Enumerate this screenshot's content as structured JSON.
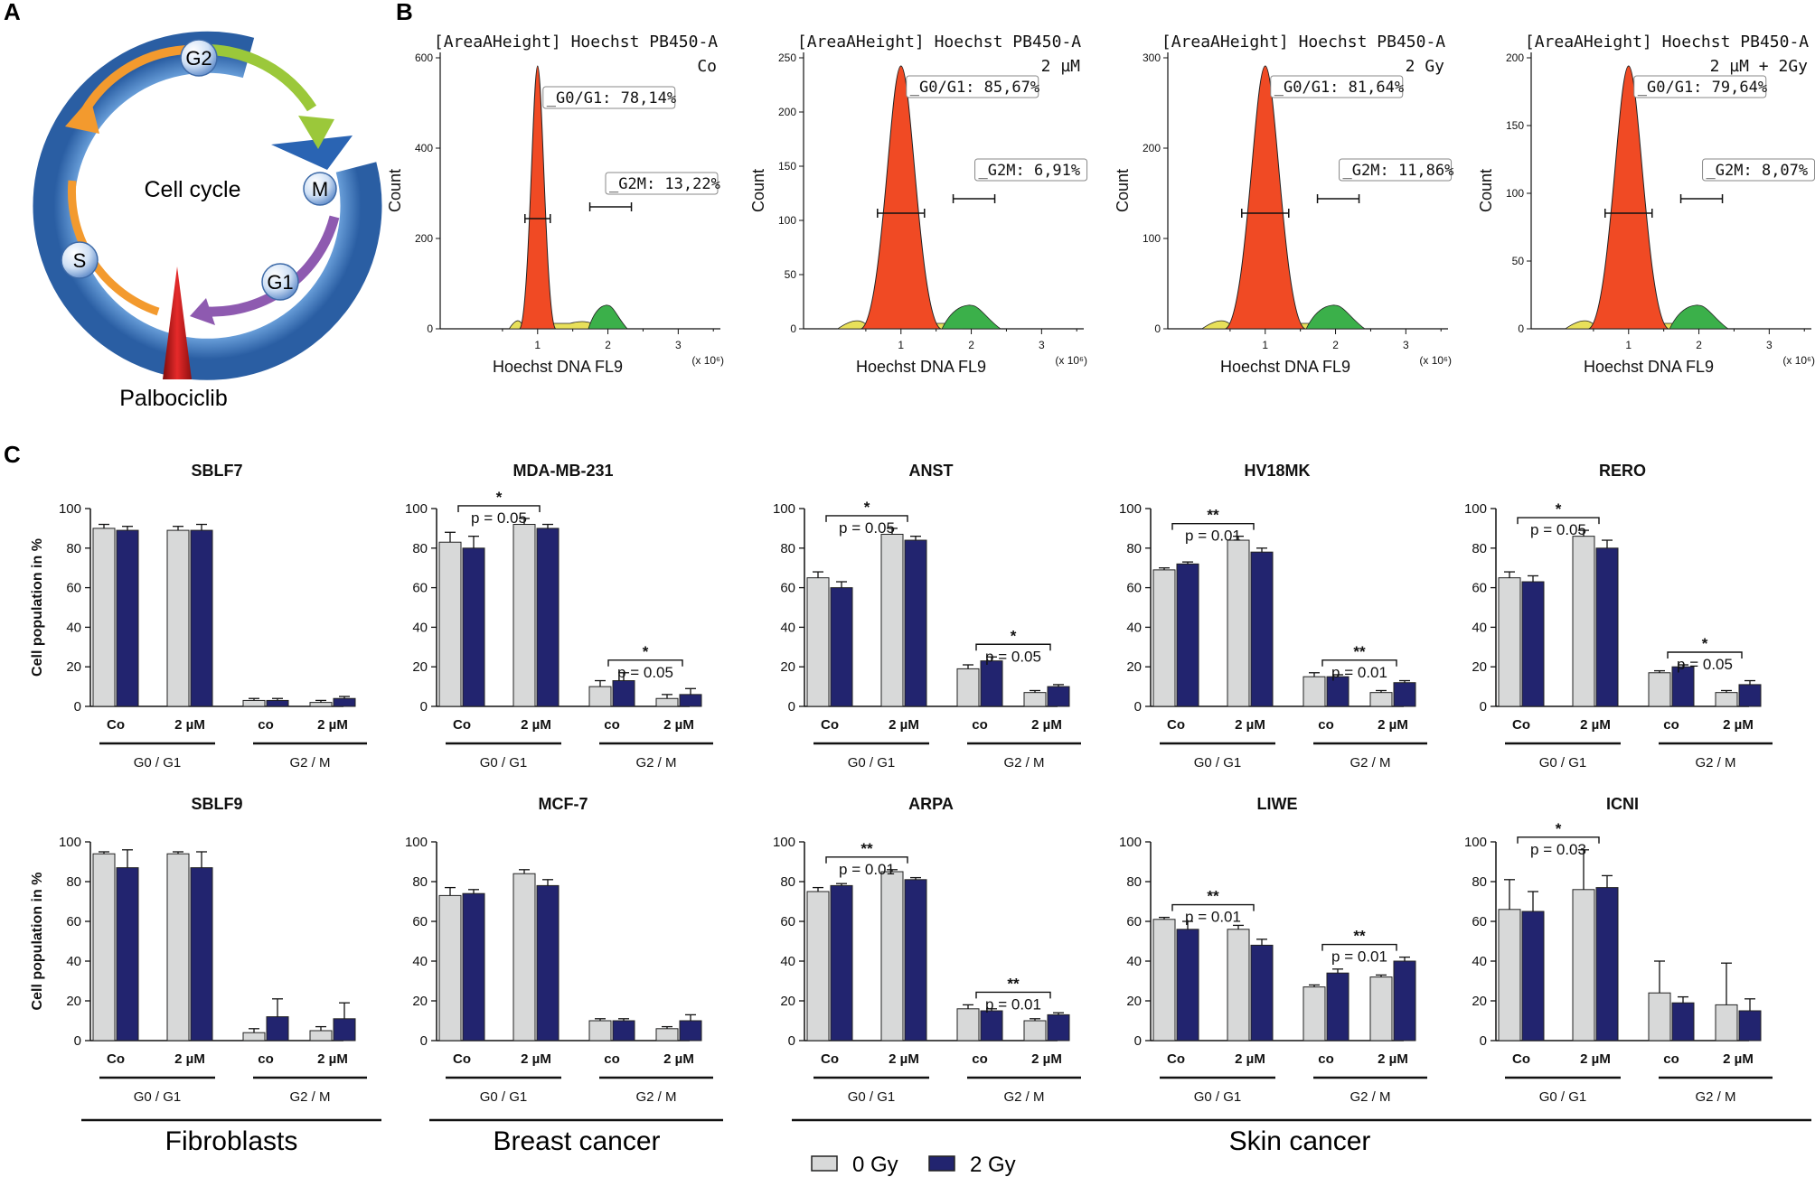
{
  "panels": {
    "a": "A",
    "b": "B",
    "c": "C"
  },
  "cycle": {
    "center": "Cell cycle",
    "phases": [
      "G2",
      "M",
      "G1",
      "S"
    ],
    "drug": "Palbociclib",
    "colors": {
      "ring": "#3d7fc8",
      "arrow_g2": "#9bc83a",
      "arrow_m": "#8e5ab0",
      "arrow_s": "#f39a2e",
      "drug": "#cc1e1e"
    }
  },
  "histograms": [
    {
      "title": "[AreaAHeight] Hoechst PB450-A",
      "condition": "Co",
      "gate1": "_G0/G1: 78,14%",
      "gate2": "_G2M: 13,22%",
      "ylabel": "Count",
      "xlabel": "Hoechst DNA FL9",
      "xunit": "(x 10⁶)",
      "yticks": [
        "0",
        "200",
        "400",
        "600"
      ],
      "xticks": [
        "1",
        "2",
        "3"
      ]
    },
    {
      "title": "[AreaAHeight] Hoechst PB450-A",
      "condition": "2 µM",
      "gate1": "_G0/G1: 85,67%",
      "gate2": "_G2M: 6,91%",
      "ylabel": "Count",
      "xlabel": "Hoechst DNA FL9",
      "xunit": "(x 10⁶)",
      "yticks": [
        "0",
        "50",
        "100",
        "150",
        "200",
        "250"
      ],
      "xticks": [
        "1",
        "2",
        "3"
      ]
    },
    {
      "title": "[AreaAHeight] Hoechst PB450-A",
      "condition": "2 Gy",
      "gate1": "_G0/G1: 81,64%",
      "gate2": "_G2M: 11,86%",
      "ylabel": "Count",
      "xlabel": "Hoechst DNA FL9",
      "xunit": "(x 10⁶)",
      "yticks": [
        "0",
        "100",
        "200",
        "300"
      ],
      "xticks": [
        "1",
        "2",
        "3"
      ]
    },
    {
      "title": "[AreaAHeight] Hoechst PB450-A",
      "condition": "2 µM +  2Gy",
      "gate1": "_G0/G1: 79,64%",
      "gate2": "_G2M: 8,07%",
      "ylabel": "Count",
      "xlabel": "Hoechst DNA FL9",
      "xunit": "(x 10⁶)",
      "yticks": [
        "0",
        "50",
        "100",
        "150",
        "200"
      ],
      "xticks": [
        "1",
        "2",
        "3"
      ]
    }
  ],
  "chart_data": [
    {
      "type": "bar",
      "title": "SBLF7",
      "ylabel": "Cell population in %",
      "ylim": [
        0,
        100
      ],
      "categories": [
        "Co",
        "2 µM",
        "co",
        "2 µM"
      ],
      "groups": [
        "G0 / G1",
        "G2  / M"
      ],
      "series": [
        {
          "name": "0 Gy",
          "values": [
            90,
            89,
            3,
            2
          ],
          "errors": [
            2,
            2,
            1,
            1
          ]
        },
        {
          "name": "2 Gy",
          "values": [
            89,
            89,
            3,
            4
          ],
          "errors": [
            2,
            3,
            1,
            1
          ]
        }
      ],
      "annotations": []
    },
    {
      "type": "bar",
      "title": "MDA-MB-231",
      "ylabel": "",
      "ylim": [
        0,
        100
      ],
      "categories": [
        "Co",
        "2 µM",
        "co",
        "2 µM"
      ],
      "groups": [
        "G0 / G1",
        "G2  / M"
      ],
      "series": [
        {
          "name": "0 Gy",
          "values": [
            83,
            92,
            10,
            4
          ],
          "errors": [
            5,
            3,
            3,
            2
          ]
        },
        {
          "name": "2 Gy",
          "values": [
            80,
            90,
            13,
            6
          ],
          "errors": [
            6,
            2,
            4,
            3
          ]
        }
      ],
      "annotations": [
        {
          "stars": "*",
          "p": "p = 0.05",
          "group": 0
        },
        {
          "stars": "*",
          "p": "p = 0.05",
          "group": 1
        }
      ]
    },
    {
      "type": "bar",
      "title": "ANST",
      "ylabel": "",
      "ylim": [
        0,
        100
      ],
      "categories": [
        "Co",
        "2 µM",
        "co",
        "2 µM"
      ],
      "groups": [
        "G0 / G1",
        "G2  / M"
      ],
      "series": [
        {
          "name": "0 Gy",
          "values": [
            65,
            87,
            19,
            7
          ],
          "errors": [
            3,
            3,
            2,
            1
          ]
        },
        {
          "name": "2 Gy",
          "values": [
            60,
            84,
            23,
            10
          ],
          "errors": [
            3,
            2,
            2,
            1
          ]
        }
      ],
      "annotations": [
        {
          "stars": "*",
          "p": "p = 0.05",
          "group": 0
        },
        {
          "stars": "*",
          "p": "p = 0.05",
          "group": 1
        }
      ]
    },
    {
      "type": "bar",
      "title": "HV18MK",
      "ylabel": "",
      "ylim": [
        0,
        100
      ],
      "categories": [
        "Co",
        "2 µM",
        "co",
        "2 µM"
      ],
      "groups": [
        "G0 / G1",
        "G2  / M"
      ],
      "series": [
        {
          "name": "0 Gy",
          "values": [
            69,
            84,
            15,
            7
          ],
          "errors": [
            1,
            2,
            2,
            1
          ]
        },
        {
          "name": "2 Gy",
          "values": [
            72,
            78,
            15,
            12
          ],
          "errors": [
            1,
            2,
            1,
            1
          ]
        }
      ],
      "annotations": [
        {
          "stars": "**",
          "p": "p = 0.01",
          "group": 0
        },
        {
          "stars": "**",
          "p": "p = 0.01",
          "group": 1
        }
      ]
    },
    {
      "type": "bar",
      "title": "RERO",
      "ylabel": "",
      "ylim": [
        0,
        100
      ],
      "categories": [
        "Co",
        "2 µM",
        "co",
        "2 µM"
      ],
      "groups": [
        "G0 / G1",
        "G2  / M"
      ],
      "series": [
        {
          "name": "0 Gy",
          "values": [
            65,
            86,
            17,
            7
          ],
          "errors": [
            3,
            3,
            1,
            1
          ]
        },
        {
          "name": "2 Gy",
          "values": [
            63,
            80,
            20,
            11
          ],
          "errors": [
            3,
            4,
            1,
            2
          ]
        }
      ],
      "annotations": [
        {
          "stars": "*",
          "p": "p = 0.05",
          "group": 0
        },
        {
          "stars": "*",
          "p": "p = 0.05",
          "group": 1
        }
      ]
    },
    {
      "type": "bar",
      "title": "SBLF9",
      "ylabel": "Cell population in %",
      "ylim": [
        0,
        100
      ],
      "categories": [
        "Co",
        "2 µM",
        "co",
        "2 µM"
      ],
      "groups": [
        "G0 / G1",
        "G2  / M"
      ],
      "series": [
        {
          "name": "0 Gy",
          "values": [
            94,
            94,
            4,
            5
          ],
          "errors": [
            1,
            1,
            2,
            2
          ]
        },
        {
          "name": "2 Gy",
          "values": [
            87,
            87,
            12,
            11
          ],
          "errors": [
            9,
            8,
            9,
            8
          ]
        }
      ],
      "annotations": []
    },
    {
      "type": "bar",
      "title": "MCF-7",
      "ylabel": "",
      "ylim": [
        0,
        100
      ],
      "categories": [
        "Co",
        "2 µM",
        "co",
        "2 µM"
      ],
      "groups": [
        "G0 / G1",
        "G2  / M"
      ],
      "series": [
        {
          "name": "0 Gy",
          "values": [
            73,
            84,
            10,
            6
          ],
          "errors": [
            4,
            2,
            1,
            1
          ]
        },
        {
          "name": "2 Gy",
          "values": [
            74,
            78,
            10,
            10
          ],
          "errors": [
            2,
            3,
            1,
            3
          ]
        }
      ],
      "annotations": []
    },
    {
      "type": "bar",
      "title": "ARPA",
      "ylabel": "",
      "ylim": [
        0,
        100
      ],
      "categories": [
        "Co",
        "2 µM",
        "co",
        "2 µM"
      ],
      "groups": [
        "G0 / G1",
        "G2  / M"
      ],
      "series": [
        {
          "name": "0 Gy",
          "values": [
            75,
            85,
            16,
            10
          ],
          "errors": [
            2,
            1,
            2,
            1
          ]
        },
        {
          "name": "2 Gy",
          "values": [
            78,
            81,
            15,
            13
          ],
          "errors": [
            1,
            1,
            1,
            1
          ]
        }
      ],
      "annotations": [
        {
          "stars": "**",
          "p": "p = 0.01",
          "group": 0
        },
        {
          "stars": "**",
          "p": "p = 0.01",
          "group": 1
        }
      ]
    },
    {
      "type": "bar",
      "title": "LIWE",
      "ylabel": "",
      "ylim": [
        0,
        100
      ],
      "categories": [
        "Co",
        "2 µM",
        "co",
        "2 µM"
      ],
      "groups": [
        "G0 / G1",
        "G2  / M"
      ],
      "series": [
        {
          "name": "0 Gy",
          "values": [
            61,
            56,
            27,
            32
          ],
          "errors": [
            1,
            2,
            1,
            1
          ]
        },
        {
          "name": "2 Gy",
          "values": [
            56,
            48,
            34,
            40
          ],
          "errors": [
            4,
            3,
            2,
            2
          ]
        }
      ],
      "annotations": [
        {
          "stars": "**",
          "p": "p = 0.01",
          "group": 0
        },
        {
          "stars": "**",
          "p": "p = 0.01",
          "group": 1
        }
      ]
    },
    {
      "type": "bar",
      "title": "ICNI",
      "ylabel": "",
      "ylim": [
        0,
        100
      ],
      "categories": [
        "Co",
        "2 µM",
        "co",
        "2 µM"
      ],
      "groups": [
        "G0 / G1",
        "G2  / M"
      ],
      "series": [
        {
          "name": "0 Gy",
          "values": [
            66,
            76,
            24,
            18
          ],
          "errors": [
            15,
            20,
            16,
            21
          ]
        },
        {
          "name": "2 Gy",
          "values": [
            65,
            77,
            19,
            15
          ],
          "errors": [
            10,
            6,
            3,
            6
          ]
        }
      ],
      "annotations": [
        {
          "stars": "*",
          "p": "p = 0.03",
          "group": 0
        }
      ]
    }
  ],
  "yticks": [
    "0",
    "20",
    "40",
    "60",
    "80",
    "100"
  ],
  "section_labels": [
    "Fibroblasts",
    "Breast cancer",
    "Skin cancer"
  ],
  "legend": [
    {
      "label": "0 Gy",
      "color": "#d8d9d9"
    },
    {
      "label": "2 Gy",
      "color": "#22246f"
    }
  ]
}
